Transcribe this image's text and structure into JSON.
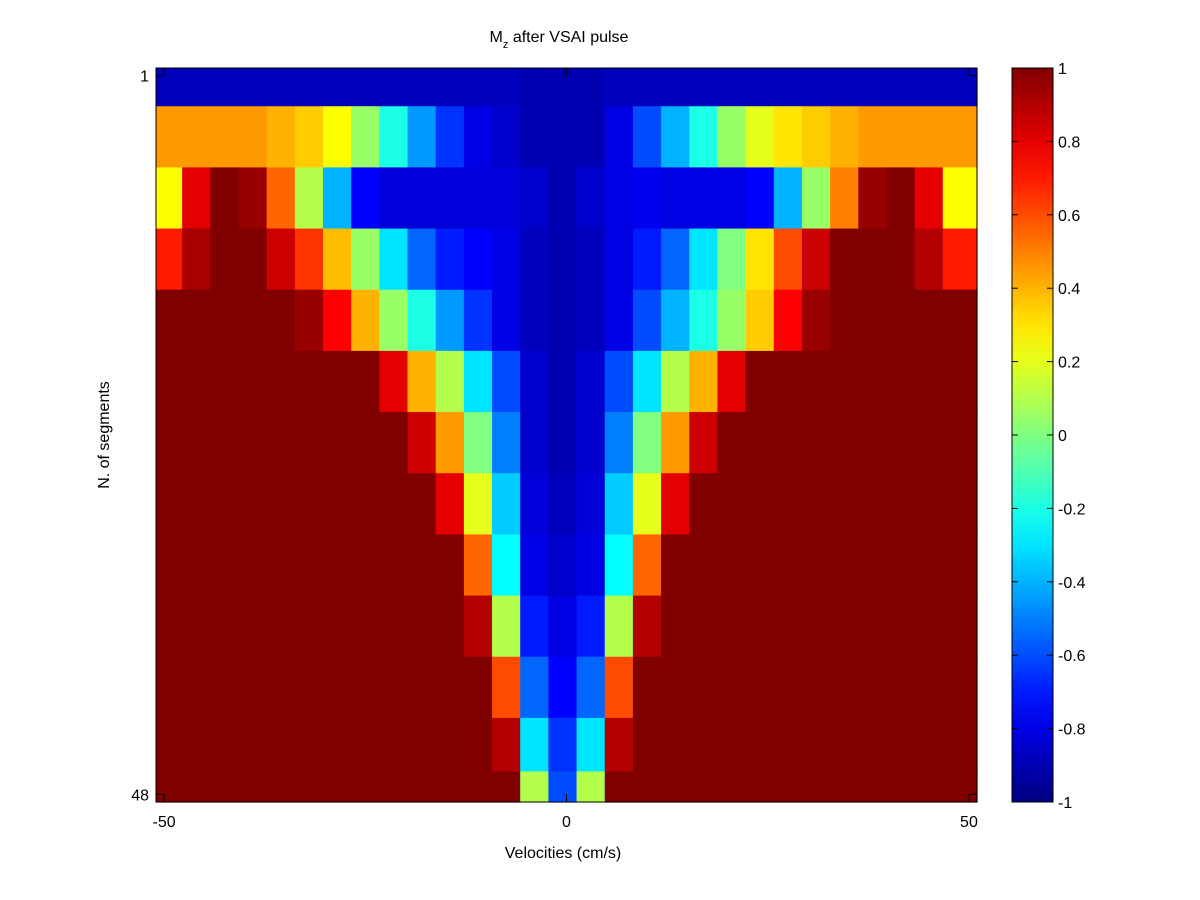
{
  "chart_data": {
    "type": "heatmap",
    "title": "M",
    "title_subscript": "z",
    "title_suffix": " after VSAI pulse",
    "xlabel": "Velocities (cm/s)",
    "ylabel": "N. of segments",
    "x_ticks": [
      {
        "value": -50,
        "label": "-50"
      },
      {
        "value": 0,
        "label": "0"
      },
      {
        "value": 50,
        "label": "50"
      }
    ],
    "y_ticks": [
      {
        "value": 1,
        "label": "1"
      },
      {
        "value": 48,
        "label": "48"
      }
    ],
    "xlim": [
      -51,
      51
    ],
    "ylim": [
      1,
      48
    ],
    "grid": false,
    "colormap": "jet",
    "colorbar": {
      "position": "right",
      "range": [
        -1,
        1
      ],
      "ticks": [
        {
          "value": 1,
          "label": "1"
        },
        {
          "value": 0.8,
          "label": "0.8"
        },
        {
          "value": 0.6,
          "label": "0.6"
        },
        {
          "value": 0.4,
          "label": "0.4"
        },
        {
          "value": 0.2,
          "label": "0.2"
        },
        {
          "value": 0,
          "label": "0"
        },
        {
          "value": -0.2,
          "label": "-0.2"
        },
        {
          "value": -0.4,
          "label": "-0.4"
        },
        {
          "value": -0.6,
          "label": "-0.6"
        },
        {
          "value": -0.8,
          "label": "-0.8"
        },
        {
          "value": -1,
          "label": "-1"
        }
      ]
    },
    "x_centers": [
      -49.5,
      -46,
      -42.5,
      -39,
      -35.5,
      -32,
      -28.5,
      -25,
      -21.5,
      -18,
      -14.5,
      -11,
      -7.5,
      -4,
      -0.5,
      3,
      6.5,
      10,
      13.5,
      17,
      20.5,
      24,
      27.5,
      31,
      34.5,
      38,
      41.5,
      45,
      48.5
    ],
    "row_segments": [
      1,
      5,
      9,
      13,
      17,
      21,
      25,
      29,
      33,
      37,
      41,
      45,
      48
    ],
    "values": [
      [
        -0.88,
        -0.88,
        -0.88,
        -0.88,
        -0.88,
        -0.88,
        -0.88,
        -0.88,
        -0.88,
        -0.88,
        -0.88,
        -0.88,
        -0.88,
        -0.9,
        -0.9,
        -0.9,
        -0.88,
        -0.88,
        -0.88,
        -0.88,
        -0.88,
        -0.88,
        -0.88,
        -0.88,
        -0.88,
        -0.88,
        -0.88,
        -0.88,
        -0.88
      ],
      [
        0.45,
        0.45,
        0.45,
        0.45,
        0.4,
        0.35,
        0.25,
        0.05,
        -0.2,
        -0.45,
        -0.65,
        -0.8,
        -0.85,
        -0.9,
        -0.9,
        -0.9,
        -0.8,
        -0.6,
        -0.4,
        -0.2,
        0.05,
        0.2,
        0.3,
        0.35,
        0.4,
        0.45,
        0.45,
        0.45,
        0.45
      ],
      [
        0.25,
        0.8,
        1,
        0.95,
        0.55,
        0.1,
        -0.4,
        -0.75,
        -0.82,
        -0.82,
        -0.82,
        -0.82,
        -0.82,
        -0.85,
        -0.9,
        -0.85,
        -0.8,
        -0.78,
        -0.8,
        -0.8,
        -0.8,
        -0.75,
        -0.4,
        0.05,
        0.5,
        0.95,
        1,
        0.8,
        0.25
      ],
      [
        0.7,
        0.92,
        1,
        1,
        0.85,
        0.65,
        0.38,
        0.05,
        -0.3,
        -0.55,
        -0.7,
        -0.75,
        -0.8,
        -0.88,
        -0.9,
        -0.88,
        -0.8,
        -0.7,
        -0.55,
        -0.3,
        0,
        0.3,
        0.6,
        0.85,
        1,
        1,
        1,
        0.9,
        0.7
      ],
      [
        1,
        1,
        1,
        1,
        1,
        0.95,
        0.75,
        0.4,
        0.05,
        -0.2,
        -0.45,
        -0.65,
        -0.8,
        -0.88,
        -0.9,
        -0.88,
        -0.8,
        -0.6,
        -0.4,
        -0.2,
        0.05,
        0.35,
        0.75,
        0.95,
        1,
        1,
        1,
        1,
        1
      ],
      [
        1,
        1,
        1,
        1,
        1,
        1,
        1,
        1,
        0.8,
        0.4,
        0.1,
        -0.3,
        -0.6,
        -0.85,
        -0.9,
        -0.85,
        -0.6,
        -0.3,
        0.1,
        0.4,
        0.8,
        1,
        1,
        1,
        1,
        1,
        1,
        1,
        1
      ],
      [
        1,
        1,
        1,
        1,
        1,
        1,
        1,
        1,
        1,
        0.85,
        0.45,
        0,
        -0.5,
        -0.85,
        -0.9,
        -0.85,
        -0.5,
        0,
        0.45,
        0.85,
        1,
        1,
        1,
        1,
        1,
        1,
        1,
        1,
        1
      ],
      [
        1,
        1,
        1,
        1,
        1,
        1,
        1,
        1,
        1,
        1,
        0.8,
        0.2,
        -0.35,
        -0.82,
        -0.88,
        -0.82,
        -0.35,
        0.2,
        0.8,
        1,
        1,
        1,
        1,
        1,
        1,
        1,
        1,
        1,
        1
      ],
      [
        1,
        1,
        1,
        1,
        1,
        1,
        1,
        1,
        1,
        1,
        1,
        0.55,
        -0.25,
        -0.8,
        -0.85,
        -0.8,
        -0.25,
        0.55,
        1,
        1,
        1,
        1,
        1,
        1,
        1,
        1,
        1,
        1,
        1
      ],
      [
        1,
        1,
        1,
        1,
        1,
        1,
        1,
        1,
        1,
        1,
        1,
        0.9,
        0.1,
        -0.7,
        -0.8,
        -0.7,
        0.1,
        0.9,
        1,
        1,
        1,
        1,
        1,
        1,
        1,
        1,
        1,
        1,
        1
      ],
      [
        1,
        1,
        1,
        1,
        1,
        1,
        1,
        1,
        1,
        1,
        1,
        1,
        0.6,
        -0.55,
        -0.75,
        -0.55,
        0.6,
        1,
        1,
        1,
        1,
        1,
        1,
        1,
        1,
        1,
        1,
        1,
        1
      ],
      [
        1,
        1,
        1,
        1,
        1,
        1,
        1,
        1,
        1,
        1,
        1,
        1,
        0.9,
        -0.3,
        -0.65,
        -0.3,
        0.9,
        1,
        1,
        1,
        1,
        1,
        1,
        1,
        1,
        1,
        1,
        1,
        1
      ],
      [
        1,
        1,
        1,
        1,
        1,
        1,
        1,
        1,
        1,
        1,
        1,
        1,
        1,
        0.1,
        -0.6,
        0.1,
        1,
        1,
        1,
        1,
        1,
        1,
        1,
        1,
        1,
        1,
        1,
        1,
        1
      ]
    ]
  }
}
